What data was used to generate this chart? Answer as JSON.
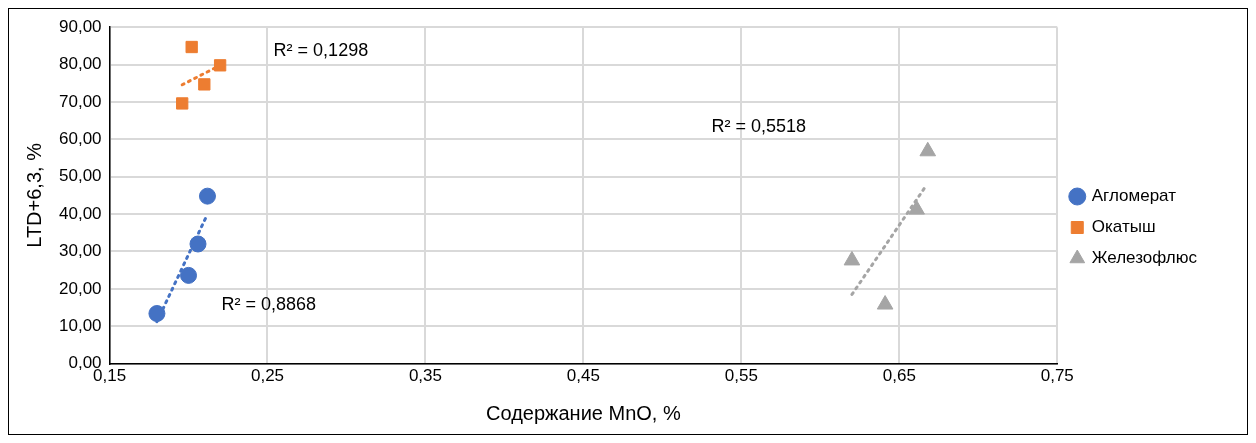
{
  "chart_data": {
    "type": "scatter",
    "xlabel": "Содержание MnO, %",
    "ylabel": "LTD+6,3, %",
    "xlim": [
      0.15,
      0.75
    ],
    "xticks": [
      {
        "value": 0.15,
        "label": "0,15"
      },
      {
        "value": 0.25,
        "label": "0,25"
      },
      {
        "value": 0.35,
        "label": "0,35"
      },
      {
        "value": 0.45,
        "label": "0,45"
      },
      {
        "value": 0.55,
        "label": "0,55"
      },
      {
        "value": 0.65,
        "label": "0,65"
      },
      {
        "value": 0.75,
        "label": "0,75"
      }
    ],
    "ylim": [
      0,
      90
    ],
    "yticks": [
      {
        "value": 0,
        "label": "0,00"
      },
      {
        "value": 10,
        "label": "10,00"
      },
      {
        "value": 20,
        "label": "20,00"
      },
      {
        "value": 30,
        "label": "30,00"
      },
      {
        "value": 40,
        "label": "40,00"
      },
      {
        "value": 50,
        "label": "50,00"
      },
      {
        "value": 60,
        "label": "60,00"
      },
      {
        "value": 70,
        "label": "70,00"
      },
      {
        "value": 80,
        "label": "80,00"
      },
      {
        "value": 90,
        "label": "90,00"
      }
    ],
    "grid": true,
    "legend": "right",
    "series": [
      {
        "name": "Агломерат",
        "color": "#4472c4",
        "marker": "circle",
        "x": [
          0.18,
          0.2,
          0.206,
          0.212
        ],
        "values": [
          13.4,
          23.6,
          32.0,
          44.8
        ]
      },
      {
        "name": "Окатыш",
        "color": "#ed7d31",
        "marker": "square",
        "x": [
          0.202,
          0.22,
          0.21,
          0.196
        ],
        "values": [
          84.7,
          79.8,
          74.7,
          69.6
        ]
      },
      {
        "name": "Железофлюс",
        "color": "#a5a5a5",
        "marker": "triangle",
        "x": [
          0.62,
          0.641,
          0.661,
          0.668
        ],
        "values": [
          27.6,
          15.8,
          41.2,
          56.8
        ]
      },
      {
        "type": "line",
        "color": "#4472c4",
        "line_style": "dotted",
        "marker": "none",
        "x": [
          0.18,
          0.212
        ],
        "values": [
          11.2,
          40.0
        ]
      },
      {
        "type": "line",
        "color": "#ed7d31",
        "line_style": "dotted",
        "marker": "none",
        "x": [
          0.196,
          0.22
        ],
        "values": [
          74.6,
          79.8
        ]
      },
      {
        "type": "line",
        "color": "#a5a5a5",
        "line_style": "dotted",
        "marker": "none",
        "x": [
          0.62,
          0.666
        ],
        "values": [
          18.5,
          47.0
        ]
      }
    ],
    "annotations": [
      "R² = 0,1298",
      "R² = 0,5518",
      "R² = 0,8868"
    ]
  }
}
